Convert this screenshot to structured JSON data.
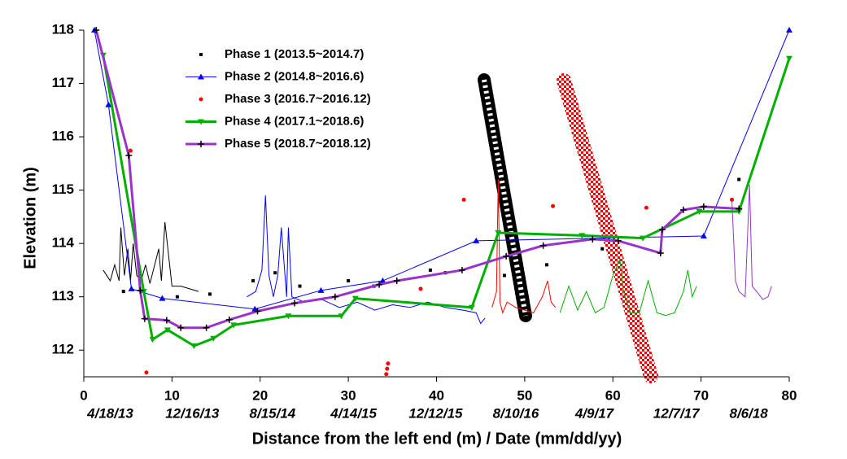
{
  "chart_data": {
    "type": "line",
    "xlabel": "Distance from the left end (m)  /  Date (mm/dd/yy)",
    "ylabel": "Elevation (m)",
    "xlim": [
      0,
      80
    ],
    "ylim": [
      111.5,
      118
    ],
    "xticks": [
      0,
      10,
      20,
      30,
      40,
      50,
      60,
      70,
      80
    ],
    "yticks": [
      112,
      113,
      114,
      115,
      116,
      117,
      118
    ],
    "x2ticks": [
      {
        "value": 3,
        "label": "4/18/13"
      },
      {
        "value": 12.3,
        "label": "12/16/13"
      },
      {
        "value": 21.4,
        "label": "8/15/14"
      },
      {
        "value": 30.6,
        "label": "4/14/15"
      },
      {
        "value": 39.9,
        "label": "12/12/15"
      },
      {
        "value": 49,
        "label": "8/10/16"
      },
      {
        "value": 57.9,
        "label": "4/9/17"
      },
      {
        "value": 67.2,
        "label": "12/7/17"
      },
      {
        "value": 75.4,
        "label": "8/6/18"
      }
    ],
    "series": [
      {
        "name": "Phase 1 (2013.5~2014.7)",
        "color": "#000000",
        "marker": "square",
        "line": false,
        "x": [
          4.5,
          10.6,
          14.3,
          19.2,
          21.7,
          24.5,
          30,
          32.9,
          39.3,
          41,
          47.7,
          52.5,
          58.8,
          74.3
        ],
        "values": [
          113.1,
          113.0,
          113.05,
          113.3,
          113.45,
          113.2,
          113.3,
          113.2,
          113.5,
          113.45,
          113.4,
          113.6,
          113.9,
          115.2
        ],
        "trace": {
          "x": [
            2.2,
            3,
            3.5,
            4,
            4.2,
            4.6,
            5,
            5.3,
            5.6,
            6,
            6.5,
            7,
            7.5,
            8.5,
            8.8,
            9.2,
            10,
            11,
            12,
            13
          ],
          "values": [
            113.5,
            113.3,
            113.6,
            113.3,
            114.3,
            113.4,
            113.9,
            113.3,
            114.0,
            113.4,
            113.3,
            113.6,
            113.25,
            113.9,
            113.3,
            114.4,
            113.2,
            113.2,
            113.15,
            113.1
          ]
        }
      },
      {
        "name": "Phase 2 (2014.8~2016.6)",
        "color": "#0000ff",
        "marker": "triangle",
        "line": true,
        "width": 1,
        "x": [
          1.2,
          2.8,
          5.4,
          8.9,
          19.4,
          26.9,
          33.9,
          44.5,
          70.3,
          80
        ],
        "values": [
          118,
          116.6,
          113.15,
          112.97,
          112.77,
          113.12,
          113.3,
          114.05,
          114.14,
          118
        ],
        "trace": {
          "x": [
            18.5,
            19.5,
            20.2,
            20.6,
            21,
            21.5,
            22,
            22.4,
            23,
            23.2,
            23.6,
            25,
            27,
            29,
            31,
            33,
            35,
            37,
            39,
            41,
            43,
            44.5,
            45,
            45.5
          ],
          "values": [
            113.0,
            113.1,
            113.5,
            114.9,
            113.4,
            113.0,
            113.4,
            114.3,
            113.0,
            114.3,
            113.0,
            112.9,
            112.95,
            112.8,
            112.9,
            112.75,
            112.85,
            112.8,
            112.9,
            112.8,
            112.75,
            112.7,
            112.5,
            112.6
          ]
        }
      },
      {
        "name": "Phase 3 (2016.7~2016.12)",
        "color": "#ff0000",
        "marker": "circle",
        "line": false,
        "x": [
          5.3,
          7.1,
          34.3,
          34.4,
          34.5,
          38.2,
          43.1,
          53.2,
          63.8,
          73.5
        ],
        "values": [
          115.74,
          111.58,
          111.55,
          111.65,
          111.75,
          113.15,
          114.82,
          114.7,
          114.67,
          114.82
        ],
        "trace": {
          "x": [
            46.3,
            46.8,
            47,
            47.2,
            47.5,
            48,
            49,
            50,
            51,
            52,
            52.6,
            53,
            53.5
          ],
          "values": [
            112.8,
            113.1,
            115.2,
            112.9,
            112.7,
            112.9,
            112.8,
            112.75,
            112.7,
            113.0,
            113.3,
            112.9,
            112.8
          ]
        }
      },
      {
        "name": "Phase 4 (2017.1~2018.6)",
        "color": "#00b000",
        "marker": "down-triangle",
        "line": true,
        "width": 3,
        "x": [
          2.2,
          6.8,
          7.8,
          9.5,
          12.5,
          14.7,
          17,
          23.2,
          29.2,
          30.8,
          44,
          47,
          56.5,
          63.4,
          69.8,
          74.3,
          80
        ],
        "values": [
          117.53,
          113.1,
          112.2,
          112.38,
          112.08,
          112.22,
          112.47,
          112.64,
          112.64,
          112.97,
          112.8,
          114.2,
          114.15,
          114.1,
          114.6,
          114.6,
          117.47
        ],
        "trace": {
          "x": [
            54,
            55,
            56,
            57,
            58,
            59,
            60,
            60.8,
            61.2,
            62,
            63,
            64,
            65,
            66,
            67,
            68,
            68.5,
            69,
            69.5
          ],
          "values": [
            112.7,
            113.2,
            112.75,
            113.1,
            112.7,
            112.8,
            113.4,
            113.7,
            113.1,
            112.7,
            112.7,
            113.3,
            112.7,
            112.65,
            112.7,
            113.1,
            113.5,
            113.0,
            113.2
          ]
        }
      },
      {
        "name": "Phase 5 (2018.7~2018.12)",
        "color": "#9933cc",
        "marker": "plus",
        "line": true,
        "width": 3,
        "x": [
          1.4,
          5.1,
          6.4,
          6.9,
          9.4,
          11,
          13.9,
          16.5,
          19.7,
          23.9,
          28.5,
          33.5,
          35.5,
          42.9,
          47.9,
          52.1,
          57.7,
          60.6,
          65.4,
          65.6,
          68,
          70.3,
          74.3
        ],
        "values": [
          118,
          115.65,
          113.12,
          112.59,
          112.56,
          112.42,
          112.42,
          112.57,
          112.73,
          112.88,
          113.0,
          113.23,
          113.3,
          113.5,
          113.76,
          113.96,
          114.08,
          114.05,
          113.82,
          114.26,
          114.63,
          114.69,
          114.65
        ],
        "trace": {
          "x": [
            73.5,
            73.9,
            74.3,
            75,
            75.5,
            75.8,
            76.3,
            77,
            77.6,
            78
          ],
          "values": [
            114.8,
            113.3,
            113.1,
            113.0,
            115.1,
            113.2,
            113.1,
            112.95,
            113.0,
            113.2
          ]
        }
      }
    ]
  }
}
